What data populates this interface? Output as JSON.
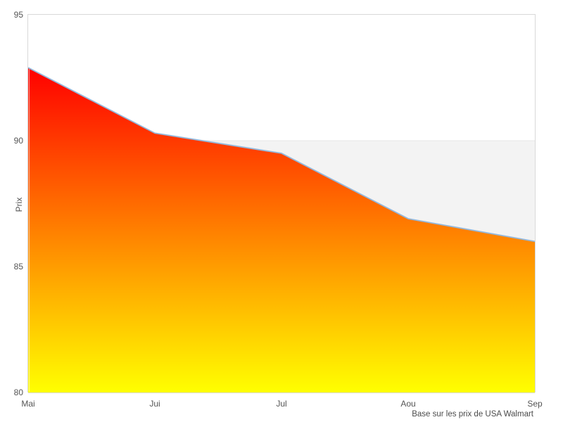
{
  "chart_data": {
    "type": "area",
    "categories": [
      "Mai",
      "Jui",
      "Jul",
      "Aou",
      "Sep"
    ],
    "values": [
      92.9,
      90.3,
      89.5,
      86.9,
      86.0
    ],
    "title": "",
    "xlabel": "",
    "ylabel": "Prix",
    "ylim": [
      80,
      95
    ],
    "yticks": [
      95,
      90,
      85,
      80
    ],
    "grid": "plot-band",
    "legend": "none",
    "caption": "Base sur les prix de USA Walmart",
    "colors": {
      "area_gradient_top": "#ff0000",
      "area_gradient_bottom": "#ffff00",
      "line": "#94b8dc",
      "plot_band_color": "#f3f3f3",
      "plot_band_from": 85,
      "plot_band_to": 90,
      "border": "#d9d9d9",
      "gridline": "#e7e7e7",
      "label_text": "#545454",
      "background": "#ffffff"
    }
  }
}
